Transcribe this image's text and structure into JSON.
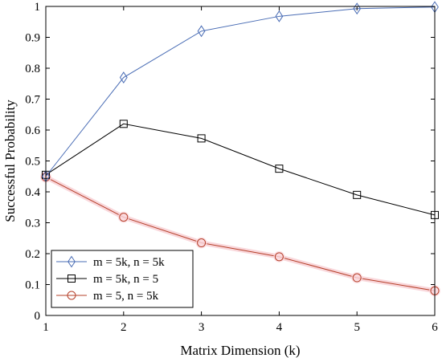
{
  "chart_data": {
    "type": "line",
    "x": [
      1,
      2,
      3,
      4,
      5,
      6
    ],
    "xlabel": "Matrix Dimension (k)",
    "ylabel": "Successful Probability",
    "xlim": [
      1,
      6
    ],
    "ylim": [
      0,
      1
    ],
    "xticks": [
      "1",
      "2",
      "3",
      "4",
      "5",
      "6"
    ],
    "yticks": [
      "0",
      "0.1",
      "0.2",
      "0.3",
      "0.4",
      "0.5",
      "0.6",
      "0.7",
      "0.8",
      "0.9",
      "1"
    ],
    "grid": false,
    "legend_position": "bottom-left",
    "series": [
      {
        "name": "m = 5k, n = 5k",
        "color": "#4a6db5",
        "marker": "diamond",
        "values": [
          0.45,
          0.77,
          0.92,
          0.968,
          0.993,
          0.998
        ]
      },
      {
        "name": "m = 5k, n = 5",
        "color": "#000000",
        "marker": "square",
        "values": [
          0.455,
          0.62,
          0.573,
          0.475,
          0.39,
          0.325
        ]
      },
      {
        "name": "m = 5, n = 5k",
        "color": "#b5402a",
        "marker": "circle",
        "values": [
          0.448,
          0.318,
          0.235,
          0.19,
          0.122,
          0.08
        ]
      }
    ]
  }
}
